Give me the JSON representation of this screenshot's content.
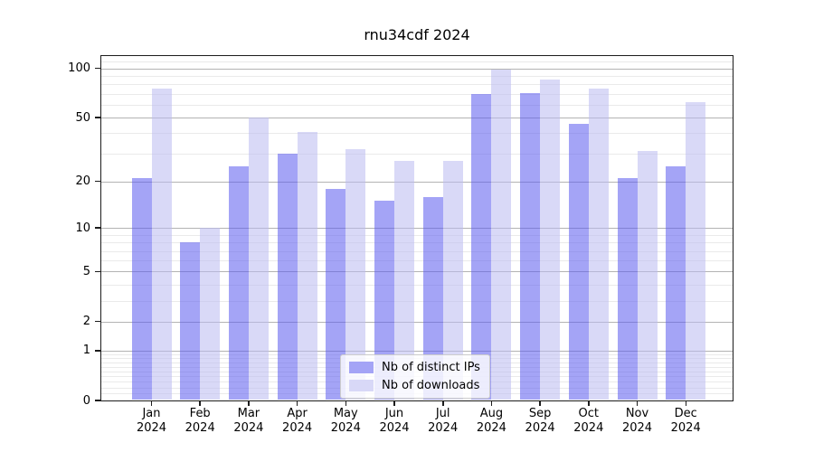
{
  "title": "rnu34cdf 2024",
  "colors": {
    "ips_bar": "rgba(90,90,238,0.55)",
    "downloads_bar": "rgba(185,185,240,0.55)",
    "ips_swatch": "#a4a4f6",
    "downloads_swatch": "#d8d8f7",
    "major_grid": "#b3b3b3",
    "minor_grid": "#eaeaea"
  },
  "legend": {
    "items": [
      {
        "label": "Nb of distinct IPs",
        "series": "ips"
      },
      {
        "label": "Nb of downloads",
        "series": "downloads"
      }
    ]
  },
  "chart_data": {
    "type": "bar",
    "title": "rnu34cdf 2024",
    "categories": [
      "Jan 2024",
      "Feb 2024",
      "Mar 2024",
      "Apr 2024",
      "May 2024",
      "Jun 2024",
      "Jul 2024",
      "Aug 2024",
      "Sep 2024",
      "Oct 2024",
      "Nov 2024",
      "Dec 2024"
    ],
    "series": [
      {
        "name": "Nb of distinct IPs",
        "values": [
          21,
          8,
          25,
          30,
          18,
          15,
          16,
          70,
          71,
          46,
          21,
          25
        ]
      },
      {
        "name": "Nb of downloads",
        "values": [
          75,
          10,
          50,
          41,
          32,
          27,
          27,
          98,
          85,
          75,
          31,
          62
        ]
      }
    ],
    "xlabel": "",
    "ylabel": "",
    "yscale": "log1p",
    "ylim": [
      0,
      120
    ],
    "yticks": [
      100,
      50,
      20,
      10,
      5,
      2,
      1,
      0
    ],
    "yticks_minor": [
      0.1,
      0.2,
      0.3,
      0.4,
      0.5,
      0.6,
      0.7,
      0.8,
      0.9,
      3,
      4,
      6,
      7,
      8,
      9,
      30,
      40,
      60,
      70,
      80,
      90,
      110
    ],
    "grid": "on",
    "legend_position": "lower center"
  }
}
